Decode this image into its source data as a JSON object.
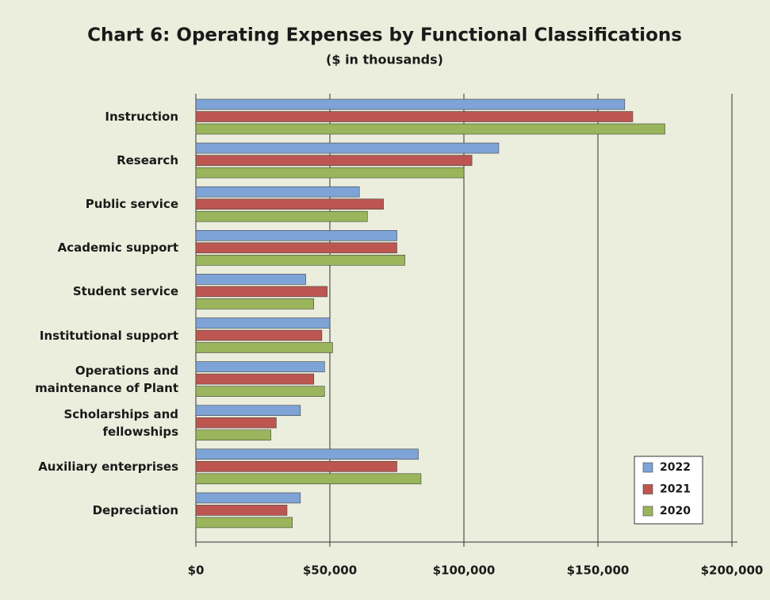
{
  "chart_data": {
    "type": "hbar",
    "title": "Chart 6: Operating Expenses by Functional Classifications",
    "subtitle": "($ in thousands)",
    "categories": [
      "Instruction",
      "Research",
      "Public service",
      "Academic support",
      "Student service",
      "Institutional support",
      "Operations and\nmaintenance of Plant",
      "Scholarships and\nfellowships",
      "Auxiliary enterprises",
      "Depreciation"
    ],
    "series": [
      {
        "name": "2022",
        "color": "#7ea3d6",
        "values": [
          160000,
          113000,
          61000,
          75000,
          41000,
          50000,
          48000,
          39000,
          83000,
          39000
        ]
      },
      {
        "name": "2021",
        "color": "#bd5650",
        "values": [
          163000,
          103000,
          70000,
          75000,
          49000,
          47000,
          44000,
          30000,
          75000,
          34000
        ]
      },
      {
        "name": "2020",
        "color": "#9ab55b",
        "values": [
          175000,
          100000,
          64000,
          78000,
          44000,
          51000,
          48000,
          28000,
          84000,
          36000
        ]
      }
    ],
    "xlim": [
      0,
      200000
    ],
    "xticks": [
      {
        "value": 0,
        "label": "$0"
      },
      {
        "value": 50000,
        "label": "$50,000"
      },
      {
        "value": 100000,
        "label": "$100,000"
      },
      {
        "value": 150000,
        "label": "$150,000"
      },
      {
        "value": 200000,
        "label": "$200,000"
      }
    ],
    "grid": true,
    "legend": "lower right"
  }
}
